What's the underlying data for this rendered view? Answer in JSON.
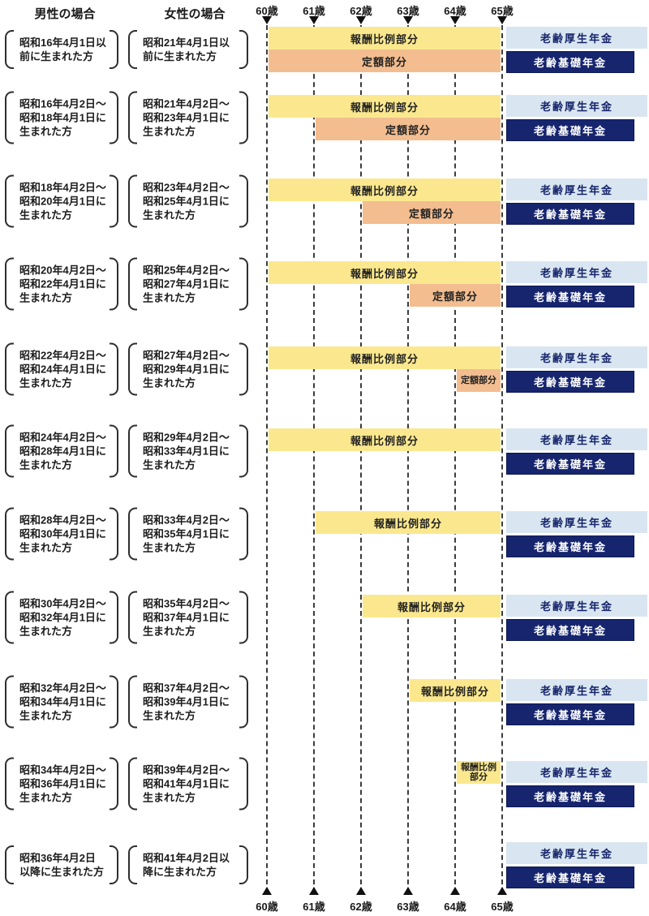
{
  "header": {
    "male_col": "男性の場合",
    "female_col": "女性の場合"
  },
  "axis": {
    "ages": [
      "60歳",
      "61歳",
      "62歳",
      "63歳",
      "64歳",
      "65歳"
    ]
  },
  "bar_labels": {
    "hoshu": "報酬比例部分",
    "hoshu_2line": "報酬比例\n部分",
    "teigaku": "定額部分",
    "kosei": "老齢厚生年金",
    "kiso": "老齢基礎年金"
  },
  "colors": {
    "hoshu": "#FBE88E",
    "teigaku": "#F3BD90",
    "kosei": "#D9E6F1",
    "kiso": "#16256E"
  },
  "chart_data": {
    "type": "table",
    "x_axis": {
      "ticks": [
        "60歳",
        "61歳",
        "62歳",
        "63歳",
        "64歳",
        "65歳"
      ],
      "range": [
        60,
        65
      ]
    },
    "legend": [
      "報酬比例部分",
      "定額部分",
      "老齢厚生年金",
      "老齢基礎年金"
    ],
    "pension_from_65": [
      "老齢厚生年金",
      "老齢基礎年金"
    ],
    "rows": [
      {
        "male": "昭和16年4月1日以\n前に生まれた方",
        "female": "昭和21年4月1日以\n前に生まれた方",
        "hoshu_start": 60,
        "teigaku_start": 60
      },
      {
        "male": "昭和16年4月2日～\n昭和18年4月1日に\n生まれた方",
        "female": "昭和21年4月2日～\n昭和23年4月1日に\n生まれた方",
        "hoshu_start": 60,
        "teigaku_start": 61
      },
      {
        "male": "昭和18年4月2日～\n昭和20年4月1日に\n生まれた方",
        "female": "昭和23年4月2日～\n昭和25年4月1日に\n生まれた方",
        "hoshu_start": 60,
        "teigaku_start": 62
      },
      {
        "male": "昭和20年4月2日～\n昭和22年4月1日に\n生まれた方",
        "female": "昭和25年4月2日～\n昭和27年4月1日に\n生まれた方",
        "hoshu_start": 60,
        "teigaku_start": 63
      },
      {
        "male": "昭和22年4月2日～\n昭和24年4月1日に\n生まれた方",
        "female": "昭和27年4月2日～\n昭和29年4月1日に\n生まれた方",
        "hoshu_start": 60,
        "teigaku_start": 64
      },
      {
        "male": "昭和24年4月2日～\n昭和28年4月1日に\n生まれた方",
        "female": "昭和29年4月2日～\n昭和33年4月1日に\n生まれた方",
        "hoshu_start": 60,
        "teigaku_start": null
      },
      {
        "male": "昭和28年4月2日～\n昭和30年4月1日に\n生まれた方",
        "female": "昭和33年4月2日～\n昭和35年4月1日に\n生まれた方",
        "hoshu_start": 61,
        "teigaku_start": null
      },
      {
        "male": "昭和30年4月2日～\n昭和32年4月1日に\n生まれた方",
        "female": "昭和35年4月2日～\n昭和37年4月1日に\n生まれた方",
        "hoshu_start": 62,
        "teigaku_start": null
      },
      {
        "male": "昭和32年4月2日～\n昭和34年4月1日に\n生まれた方",
        "female": "昭和37年4月2日～\n昭和39年4月1日に\n生まれた方",
        "hoshu_start": 63,
        "teigaku_start": null
      },
      {
        "male": "昭和34年4月2日～\n昭和36年4月1日に\n生まれた方",
        "female": "昭和39年4月2日～\n昭和41年4月1日に\n生まれた方",
        "hoshu_start": 64,
        "teigaku_start": null
      },
      {
        "male": "昭和36年4月2日\n以降に生まれた方",
        "female": "昭和41年4月2日以\n降に生まれた方",
        "hoshu_start": null,
        "teigaku_start": null
      }
    ]
  }
}
